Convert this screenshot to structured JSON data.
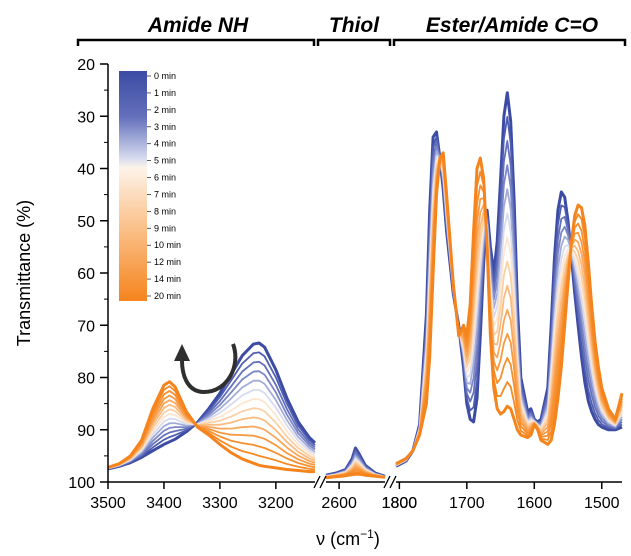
{
  "chart_data": {
    "type": "line",
    "sections": [
      "Amide NH",
      "Thiol",
      "Ester/Amide C=O"
    ],
    "ylabel": "Transmittance (%)",
    "xlabel": "ν (cm",
    "xlabel_sup": "−1",
    "xlabel_close": ")",
    "yticks": [
      20,
      30,
      40,
      50,
      60,
      70,
      80,
      90,
      100
    ],
    "ylim": [
      20,
      100
    ],
    "y_inverted": true,
    "panels": [
      {
        "name": "Amide NH",
        "xlim": [
          3500,
          3130
        ],
        "xticks": [
          3500,
          3400,
          3300,
          3200
        ]
      },
      {
        "name": "Thiol",
        "xlim": [
          2620,
          2530
        ],
        "xticks": [
          2600
        ]
      },
      {
        "name": "Ester/Amide C=O",
        "xlim": [
          1805,
          1470
        ],
        "xticks": [
          1800,
          1700,
          1600,
          1500
        ]
      }
    ],
    "extra_tick_labels": [
      "1800"
    ],
    "legend": {
      "placement": "top-left",
      "entries": [
        "0 min",
        "1 min",
        "2 min",
        "3 min",
        "4 min",
        "5 min",
        "6 min",
        "7 min",
        "8 min",
        "9 min",
        "10 min",
        "12 min",
        "14 min",
        "20 min"
      ]
    },
    "colors": [
      "#3c4ba4",
      "#4f5db0",
      "#6470bb",
      "#7b86c7",
      "#a3abd8",
      "#d7dbef",
      "#fde6cf",
      "#fcd0a6",
      "#fbbb7f",
      "#f9a75c",
      "#f8993f",
      "#f78f2e",
      "#f68a24",
      "#f5841d"
    ],
    "series_nh": {
      "x": [
        3500,
        3480,
        3460,
        3440,
        3420,
        3400,
        3390,
        3380,
        3360,
        3340,
        3320,
        3300,
        3280,
        3260,
        3240,
        3230,
        3220,
        3200,
        3180,
        3160,
        3140,
        3130
      ],
      "first": [
        97.5,
        97.0,
        96.3,
        95.3,
        94.0,
        92.8,
        92.3,
        91.8,
        90.4,
        88.6,
        86.0,
        83.0,
        79.4,
        75.8,
        73.6,
        73.4,
        74.2,
        78.5,
        84.0,
        88.5,
        91.5,
        92.5
      ],
      "last": [
        97.2,
        96.5,
        95.0,
        92.0,
        86.0,
        81.5,
        80.8,
        81.8,
        86.5,
        89.5,
        91.0,
        92.8,
        94.4,
        95.6,
        96.4,
        96.8,
        97.0,
        97.3,
        97.6,
        97.8,
        98.0,
        98.0
      ]
    },
    "series_sh": {
      "x": [
        2620,
        2605,
        2590,
        2580,
        2575,
        2570,
        2560,
        2545,
        2530
      ],
      "first": [
        98.7,
        98.3,
        97.6,
        95.5,
        93.5,
        94.5,
        96.8,
        98.3,
        98.9
      ],
      "last": [
        99.2,
        99.0,
        98.8,
        98.6,
        98.5,
        98.5,
        98.7,
        98.9,
        99.1
      ]
    },
    "series_co": {
      "x": [
        1805,
        1790,
        1780,
        1770,
        1760,
        1755,
        1750,
        1745,
        1740,
        1735,
        1730,
        1720,
        1712,
        1705,
        1700,
        1695,
        1690,
        1685,
        1680,
        1675,
        1670,
        1665,
        1660,
        1655,
        1650,
        1645,
        1640,
        1635,
        1630,
        1625,
        1620,
        1610,
        1605,
        1600,
        1595,
        1590,
        1580,
        1575,
        1570,
        1565,
        1560,
        1555,
        1550,
        1545,
        1540,
        1535,
        1530,
        1525,
        1520,
        1515,
        1510,
        1505,
        1500,
        1490,
        1480,
        1470
      ],
      "first": [
        97.0,
        96.0,
        94.0,
        89.0,
        68.0,
        48.0,
        34.0,
        33.0,
        38.0,
        44.0,
        52.0,
        64.0,
        70.0,
        78.0,
        85.0,
        88.0,
        88.5,
        84.0,
        72.0,
        58.0,
        48.0,
        55.0,
        60.0,
        54.0,
        42.0,
        30.0,
        25.5,
        31.0,
        46.0,
        66.0,
        80.0,
        86.5,
        86.0,
        88.0,
        88.5,
        88.0,
        82.0,
        70.0,
        57.0,
        48.0,
        44.5,
        45.5,
        50.0,
        57.0,
        64.0,
        70.0,
        76.0,
        81.0,
        84.5,
        86.5,
        88.0,
        89.0,
        89.5,
        90.0,
        90.0,
        89.5
      ],
      "last": [
        96.5,
        95.5,
        94.0,
        91.0,
        85.0,
        76.0,
        60.0,
        45.0,
        38.0,
        37.0,
        45.0,
        62.0,
        72.0,
        70.0,
        72.0,
        66.0,
        52.0,
        40.0,
        38.0,
        42.0,
        55.0,
        72.0,
        82.0,
        86.0,
        87.0,
        86.5,
        85.5,
        86.0,
        88.0,
        90.0,
        91.0,
        91.5,
        91.0,
        89.0,
        90.0,
        92.0,
        92.8,
        92.0,
        89.0,
        84.0,
        78.0,
        70.0,
        62.0,
        54.0,
        49.0,
        47.0,
        47.5,
        51.0,
        58.0,
        66.0,
        73.0,
        78.0,
        82.0,
        86.0,
        88.0,
        83.0
      ]
    }
  }
}
